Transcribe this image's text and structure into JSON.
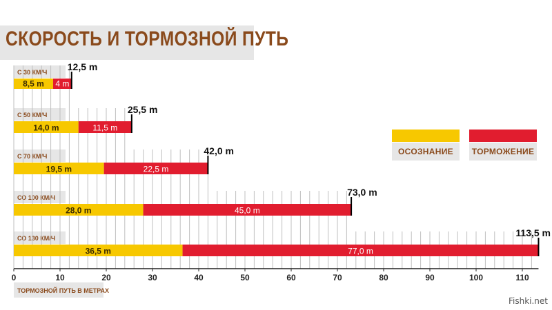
{
  "page": {
    "title": "СКОРОСТЬ И ТОРМОЗНОЙ ПУТЬ",
    "footer": "Fishki.net"
  },
  "colors": {
    "reaction": "#f7c800",
    "braking": "#e11d2f",
    "label_bg": "#e6e6e6",
    "label_text": "#8a4a1c",
    "grid": "#bfbfbf"
  },
  "legend": [
    {
      "key": "reaction",
      "label": "ОСОЗНАНИЕ"
    },
    {
      "key": "braking",
      "label": "ТОРМОЖЕНИЕ"
    }
  ],
  "chart_data": {
    "type": "bar",
    "orientation": "horizontal",
    "stacked": true,
    "xlabel": "ТОРМОЗНОЙ ПУТЬ В МЕТРАХ",
    "xlim": [
      0,
      113.5
    ],
    "xticks": [
      0,
      10,
      20,
      30,
      40,
      50,
      60,
      70,
      80,
      90,
      100,
      110
    ],
    "grid": true,
    "legend_position": "right",
    "categories": [
      "С 30 КМ/Ч",
      "С 50 КМ/Ч",
      "С 70 КМ/Ч",
      "СО 100 КМ/Ч",
      "СО 130 КМ/Ч"
    ],
    "series": [
      {
        "name": "ОСОЗНАНИЕ",
        "values": [
          8.5,
          14.0,
          19.5,
          28.0,
          36.5
        ],
        "labels": [
          "8,5 m",
          "14,0 m",
          "19,5 m",
          "28,0 m",
          "36,5 m"
        ]
      },
      {
        "name": "ТОРМОЖЕНИЕ",
        "values": [
          4,
          11.5,
          22.5,
          45.0,
          77.0
        ],
        "labels": [
          "4 m",
          "11,5 m",
          "22,5 m",
          "45,0 m",
          "77,0 m"
        ]
      }
    ],
    "totals": [
      "12,5 m",
      "25,5 m",
      "42,0 m",
      "73,0 m",
      "113,5 m"
    ],
    "total_values": [
      12.5,
      25.5,
      42.0,
      73.0,
      113.5
    ]
  }
}
